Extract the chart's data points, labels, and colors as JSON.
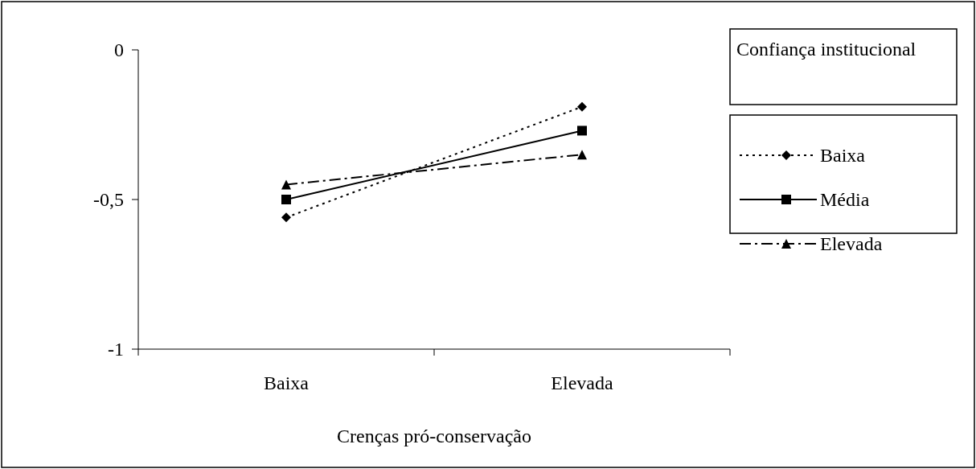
{
  "chart_data": {
    "type": "line",
    "xlabel": "Crenças pró-conservação",
    "legend_title": "Confiança institucional",
    "categories": [
      "Baixa",
      "Elevada"
    ],
    "series": [
      {
        "name": "Baixa",
        "color": "#000000",
        "values": [
          -0.56,
          -0.19
        ],
        "marker": "diamond",
        "line_style": "dotted"
      },
      {
        "name": "Média",
        "color": "#000000",
        "values": [
          -0.5,
          -0.27
        ],
        "marker": "square",
        "line_style": "solid"
      },
      {
        "name": "Elevada",
        "color": "#000000",
        "values": [
          -0.45,
          -0.35
        ],
        "marker": "triangle",
        "line_style": "dashed"
      }
    ],
    "ylim": [
      -1,
      0
    ],
    "yticks": [
      {
        "value": -1,
        "label": "-1"
      },
      {
        "value": -0.5,
        "label": "-0,5"
      },
      {
        "value": 0,
        "label": "0"
      }
    ],
    "grid": false,
    "legend": "right"
  }
}
